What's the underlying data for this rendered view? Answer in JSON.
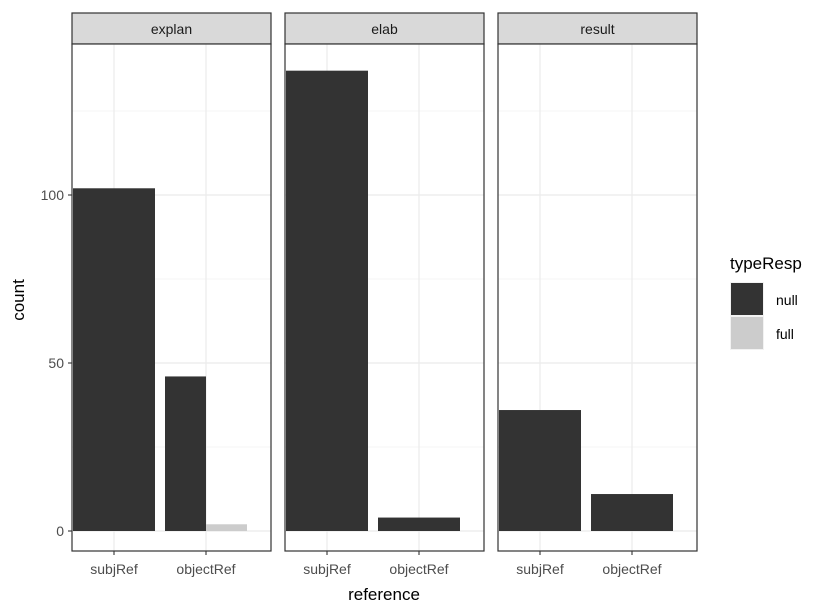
{
  "chart_data": {
    "type": "bar",
    "layout": "faceted",
    "facets": [
      "explan",
      "elab",
      "result"
    ],
    "categories": [
      "subjRef",
      "objectRef"
    ],
    "xlabel": "reference",
    "ylabel": "count",
    "ylim": [
      0,
      140
    ],
    "yticks": [
      0,
      50,
      100
    ],
    "grid": true,
    "position": "dodge",
    "legend": {
      "title": "typeResp",
      "placement": "right",
      "entries": [
        "null",
        "full"
      ]
    },
    "colors": {
      "null": "#333333",
      "full": "#cccccc"
    },
    "bars": [
      {
        "facet": "explan",
        "category": "subjRef",
        "series": "null",
        "value": 102
      },
      {
        "facet": "explan",
        "category": "objectRef",
        "series": "null",
        "value": 46
      },
      {
        "facet": "explan",
        "category": "objectRef",
        "series": "full",
        "value": 2
      },
      {
        "facet": "elab",
        "category": "subjRef",
        "series": "null",
        "value": 137
      },
      {
        "facet": "elab",
        "category": "objectRef",
        "series": "null",
        "value": 4
      },
      {
        "facet": "result",
        "category": "subjRef",
        "series": "null",
        "value": 36
      },
      {
        "facet": "result",
        "category": "objectRef",
        "series": "null",
        "value": 11
      }
    ]
  }
}
